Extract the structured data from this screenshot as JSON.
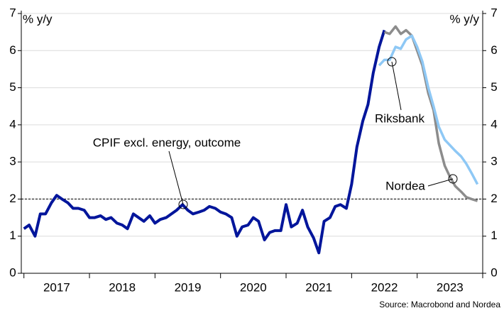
{
  "chart_data": {
    "type": "line",
    "ylabel": "% y/y",
    "y2label": "% y/y",
    "source": "Source: Macrobond and Nordea",
    "xlim": [
      2016.96,
      2024.0
    ],
    "ylim": [
      0,
      7
    ],
    "y2lim": [
      0,
      7
    ],
    "yticks": [
      0,
      1,
      2,
      3,
      4,
      5,
      6,
      7
    ],
    "y2ticks": [
      0,
      1,
      2,
      3,
      4,
      5,
      6,
      7
    ],
    "xticks": [
      {
        "value": 2017.5,
        "label": "2017"
      },
      {
        "value": 2018.5,
        "label": "2018"
      },
      {
        "value": 2019.5,
        "label": "2019"
      },
      {
        "value": 2020.5,
        "label": "2020"
      },
      {
        "value": 2021.5,
        "label": "2021"
      },
      {
        "value": 2022.5,
        "label": "2022"
      },
      {
        "value": 2023.5,
        "label": "2023"
      }
    ],
    "xminorticks": [
      2017,
      2018,
      2019,
      2020,
      2021,
      2022,
      2023,
      2024
    ],
    "grid": true,
    "reference_line": 2,
    "annotations": [
      {
        "text": "CPIF excl. energy, outcome"
      },
      {
        "text": "Riksbank"
      },
      {
        "text": "Nordea"
      }
    ],
    "x": [
      2017.0,
      2017.08,
      2017.17,
      2017.25,
      2017.33,
      2017.42,
      2017.5,
      2017.58,
      2017.67,
      2017.75,
      2017.83,
      2017.92,
      2018.0,
      2018.08,
      2018.17,
      2018.25,
      2018.33,
      2018.42,
      2018.5,
      2018.58,
      2018.67,
      2018.75,
      2018.83,
      2018.92,
      2019.0,
      2019.08,
      2019.17,
      2019.25,
      2019.33,
      2019.42,
      2019.5,
      2019.58,
      2019.67,
      2019.75,
      2019.83,
      2019.92,
      2020.0,
      2020.08,
      2020.17,
      2020.25,
      2020.33,
      2020.42,
      2020.5,
      2020.58,
      2020.67,
      2020.75,
      2020.83,
      2020.92,
      2021.0,
      2021.08,
      2021.17,
      2021.25,
      2021.33,
      2021.42,
      2021.5,
      2021.58,
      2021.67,
      2021.75,
      2021.83,
      2021.92,
      2022.0,
      2022.08,
      2022.17,
      2022.25,
      2022.33,
      2022.42,
      2022.5,
      2022.58,
      2022.67,
      2022.75,
      2022.83,
      2022.92,
      2023.0,
      2023.08,
      2023.17,
      2023.25,
      2023.33,
      2023.42,
      2023.5,
      2023.58,
      2023.67,
      2023.75,
      2023.83,
      2023.92
    ],
    "series": [
      {
        "name": "CPIF excl. energy, outcome",
        "color": "#00159b",
        "width": 4,
        "values": [
          1.2,
          1.3,
          1.0,
          1.6,
          1.6,
          1.9,
          2.1,
          2.0,
          1.9,
          1.75,
          1.75,
          1.7,
          1.5,
          1.5,
          1.55,
          1.45,
          1.5,
          1.35,
          1.3,
          1.2,
          1.6,
          1.5,
          1.4,
          1.55,
          1.35,
          1.45,
          1.5,
          1.6,
          1.7,
          1.85,
          1.7,
          1.6,
          1.65,
          1.7,
          1.8,
          1.75,
          1.65,
          1.6,
          1.5,
          1.0,
          1.25,
          1.3,
          1.5,
          1.4,
          0.9,
          1.1,
          1.15,
          1.15,
          1.85,
          1.25,
          1.35,
          1.7,
          1.25,
          0.95,
          0.55,
          1.4,
          1.5,
          1.8,
          1.85,
          1.75,
          2.4,
          3.4,
          4.1,
          4.55,
          5.4,
          6.1,
          6.55,
          null,
          null,
          null,
          null,
          null,
          null,
          null,
          null,
          null,
          null,
          null,
          null,
          null,
          null,
          null,
          null,
          null
        ]
      },
      {
        "name": "Nordea",
        "color": "#8c8c8c",
        "width": 3.5,
        "values": [
          null,
          null,
          null,
          null,
          null,
          null,
          null,
          null,
          null,
          null,
          null,
          null,
          null,
          null,
          null,
          null,
          null,
          null,
          null,
          null,
          null,
          null,
          null,
          null,
          null,
          null,
          null,
          null,
          null,
          null,
          null,
          null,
          null,
          null,
          null,
          null,
          null,
          null,
          null,
          null,
          null,
          null,
          null,
          null,
          null,
          null,
          null,
          null,
          null,
          null,
          null,
          null,
          null,
          null,
          null,
          null,
          null,
          null,
          null,
          null,
          null,
          null,
          null,
          null,
          null,
          null,
          6.5,
          6.45,
          6.65,
          6.45,
          6.55,
          6.4,
          6.0,
          5.6,
          4.85,
          4.4,
          3.5,
          2.9,
          2.6,
          2.35,
          2.2,
          2.05,
          2.0,
          1.95
        ]
      },
      {
        "name": "Riksbank",
        "color": "#8ec8f5",
        "width": 3.5,
        "values": [
          null,
          null,
          null,
          null,
          null,
          null,
          null,
          null,
          null,
          null,
          null,
          null,
          null,
          null,
          null,
          null,
          null,
          null,
          null,
          null,
          null,
          null,
          null,
          null,
          null,
          null,
          null,
          null,
          null,
          null,
          null,
          null,
          null,
          null,
          null,
          null,
          null,
          null,
          null,
          null,
          null,
          null,
          null,
          null,
          null,
          null,
          null,
          null,
          null,
          null,
          null,
          null,
          null,
          null,
          null,
          null,
          null,
          null,
          null,
          null,
          null,
          null,
          null,
          null,
          null,
          5.6,
          5.75,
          5.75,
          6.1,
          6.05,
          6.3,
          6.4,
          6.1,
          5.7,
          5.0,
          4.5,
          3.95,
          3.6,
          3.45,
          3.3,
          3.15,
          2.95,
          2.7,
          2.4
        ]
      }
    ]
  }
}
